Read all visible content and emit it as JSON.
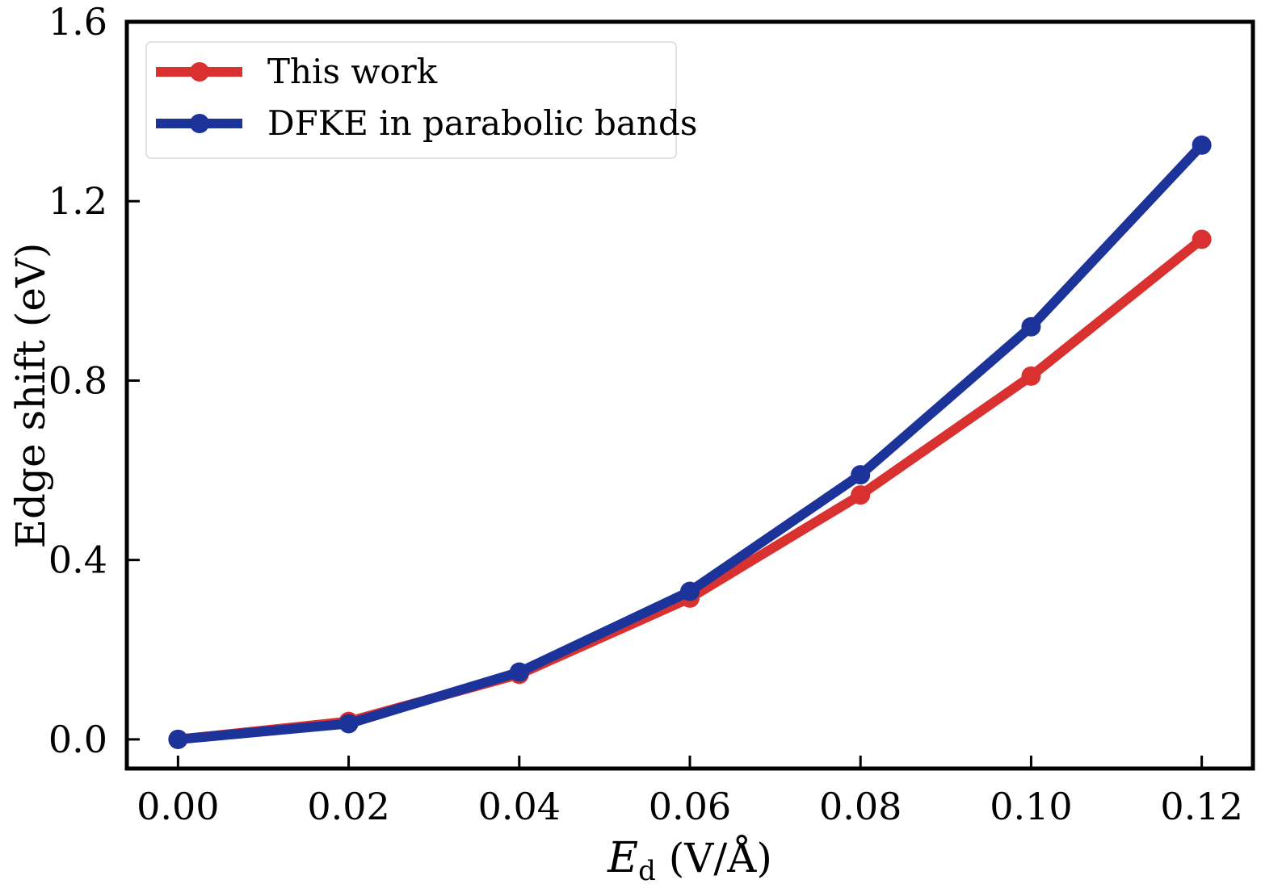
{
  "chart_data": {
    "type": "line",
    "title": "",
    "xlabel": {
      "symbol": "E",
      "subscript": "d",
      "unit": " (V/Å)"
    },
    "ylabel": "Edge shift (eV)",
    "x": [
      0.0,
      0.02,
      0.04,
      0.06,
      0.08,
      0.1,
      0.12
    ],
    "xlim": [
      -0.006,
      0.126
    ],
    "ylim": [
      -0.065,
      1.6
    ],
    "xticks": [
      "0.00",
      "0.02",
      "0.04",
      "0.06",
      "0.08",
      "0.10",
      "0.12"
    ],
    "yticks": [
      "0.0",
      "0.4",
      "0.8",
      "1.2",
      "1.6"
    ],
    "series": [
      {
        "name": "This work",
        "color": "#d93030",
        "values": [
          0.0,
          0.04,
          0.145,
          0.315,
          0.545,
          0.81,
          1.115
        ]
      },
      {
        "name": "DFKE in parabolic bands",
        "color": "#1c3399",
        "values": [
          0.0,
          0.035,
          0.15,
          0.33,
          0.59,
          0.92,
          1.325
        ]
      }
    ],
    "legend": "top-left",
    "grid": false
  }
}
